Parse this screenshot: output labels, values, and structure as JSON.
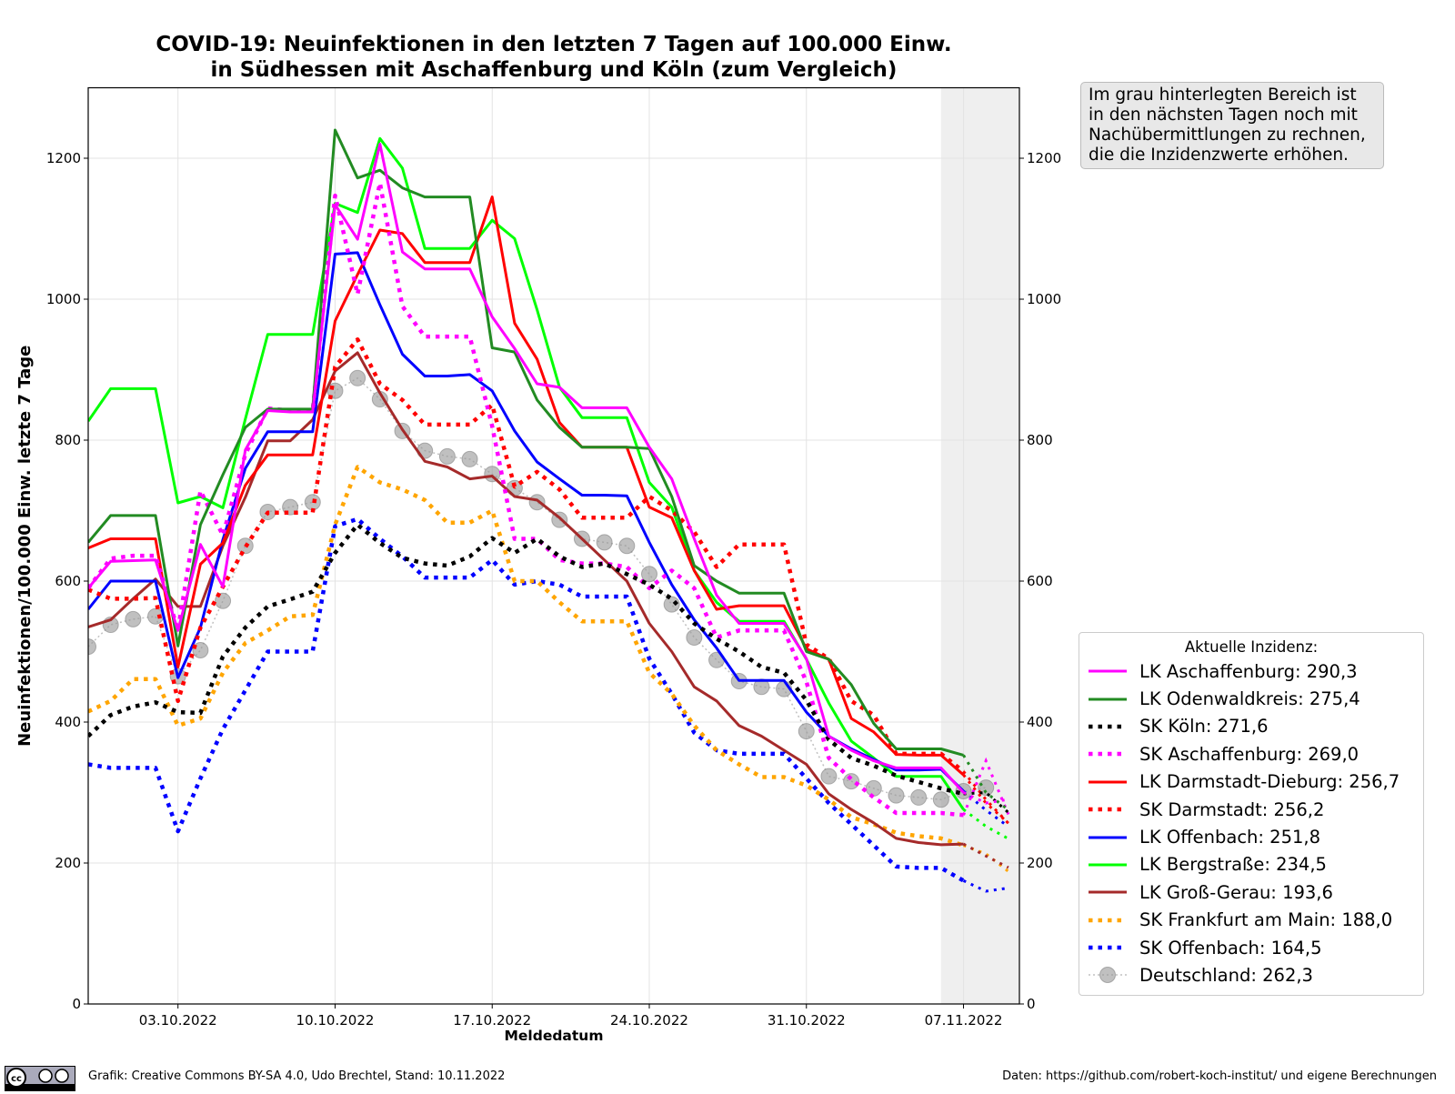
{
  "title_line1": "COVID-19: Neuinfektionen in den letzten 7 Tagen auf 100.000 Einw.",
  "title_line2": "in Südhessen mit Aschaffenburg und Köln (zum Vergleich)",
  "note": "Im grau hinterlegten Bereich ist in den nächsten Tagen noch mit Nachübermittlungen zu rechnen, die die Inzidenzwerte erhöhen.",
  "legend_title": "Aktuelle Inzidenz:",
  "footer_left": "Grafik: Creative Commons BY-SA 4.0, Udo Brechtel, Stand: 10.11.2022",
  "footer_right": "Daten: https://github.com/robert-koch-institut/ und eigene Berechnungen",
  "cc_badge": "BY SA",
  "chart_data": {
    "type": "line",
    "xlabel": "Meldedatum",
    "ylabel": "Neuinfektionen/100.000 Einw. letzte 7 Tage",
    "ylim": [
      0,
      1300
    ],
    "yticks": [
      0,
      200,
      400,
      600,
      800,
      1000,
      1200
    ],
    "x_start": "29.09.2022",
    "x_end": "09.11.2022",
    "xticks": [
      {
        "day": 4,
        "label": "03.10.2022"
      },
      {
        "day": 11,
        "label": "10.10.2022"
      },
      {
        "day": 18,
        "label": "17.10.2022"
      },
      {
        "day": 25,
        "label": "24.10.2022"
      },
      {
        "day": 32,
        "label": "31.10.2022"
      },
      {
        "day": 39,
        "label": "07.11.2022"
      }
    ],
    "shaded_from_day": 38,
    "provisional_from_day": 39,
    "grid": true,
    "legend_placement": "right",
    "series": [
      {
        "name": "LK Aschaffenburg: 290,3",
        "color": "#ff00ff",
        "style": "solid",
        "values": [
          590,
          628,
          629,
          630,
          530,
          652,
          592,
          786,
          842,
          840,
          840,
          1134,
          1085,
          1220,
          1067,
          1043,
          1043,
          1043,
          975,
          930,
          880,
          875,
          846,
          846,
          846,
          790,
          745,
          660,
          580,
          540,
          540,
          540,
          490,
          380,
          360,
          345,
          335,
          335,
          335,
          300,
          285,
          290.3
        ]
      },
      {
        "name": "LK Odenwaldkreis: 275,4",
        "color": "#228b22",
        "style": "solid",
        "values": [
          655,
          693,
          693,
          693,
          508,
          680,
          751,
          818,
          844,
          844,
          844,
          1240,
          1172,
          1183,
          1158,
          1145,
          1145,
          1145,
          931,
          925,
          857,
          818,
          790,
          790,
          790,
          788,
          720,
          622,
          600,
          583,
          583,
          583,
          500,
          489,
          453,
          398,
          362,
          362,
          362,
          353,
          300,
          275.4
        ]
      },
      {
        "name": "SK Köln: 271,6",
        "color": "#000000",
        "style": "dotted",
        "values": [
          380,
          410,
          422,
          428,
          414,
          413,
          493,
          534,
          564,
          574,
          585,
          640,
          680,
          654,
          633,
          625,
          622,
          635,
          661,
          640,
          660,
          635,
          620,
          625,
          610,
          595,
          575,
          540,
          518,
          500,
          478,
          470,
          431,
          375,
          349,
          338,
          324,
          315,
          306,
          298,
          300,
          271.6
        ]
      },
      {
        "name": "SK Aschaffenburg: 269,0",
        "color": "#ff00ff",
        "style": "dotted",
        "values": [
          590,
          632,
          636,
          636,
          530,
          728,
          665,
          780,
          845,
          842,
          842,
          1147,
          1007,
          1165,
          990,
          947,
          947,
          947,
          820,
          660,
          660,
          630,
          625,
          625,
          620,
          590,
          615,
          590,
          520,
          530,
          530,
          530,
          457,
          349,
          319,
          293,
          271,
          271,
          271,
          268,
          345,
          269.0
        ]
      },
      {
        "name": "LK Darmstadt-Dieburg: 256,7",
        "color": "#ff0000",
        "style": "solid",
        "values": [
          647,
          660,
          660,
          660,
          478,
          624,
          654,
          736,
          779,
          779,
          779,
          969,
          1035,
          1098,
          1093,
          1052,
          1052,
          1052,
          1145,
          966,
          915,
          825,
          790,
          790,
          790,
          705,
          690,
          615,
          560,
          565,
          565,
          565,
          504,
          489,
          405,
          386,
          354,
          353,
          353,
          325,
          285,
          256.7
        ]
      },
      {
        "name": "SK Darmstadt: 256,2",
        "color": "#ff0000",
        "style": "dotted",
        "values": [
          588,
          575,
          575,
          576,
          430,
          534,
          592,
          648,
          697,
          697,
          697,
          904,
          943,
          880,
          857,
          822,
          822,
          822,
          850,
          734,
          755,
          730,
          690,
          690,
          690,
          720,
          700,
          670,
          620,
          652,
          652,
          652,
          510,
          490,
          430,
          410,
          355,
          355,
          355,
          330,
          290,
          256.2
        ]
      },
      {
        "name": "LK Offenbach: 251,8",
        "color": "#0000ff",
        "style": "solid",
        "values": [
          560,
          600,
          600,
          600,
          463,
          534,
          659,
          760,
          812,
          812,
          812,
          1064,
          1066,
          992,
          922,
          891,
          891,
          893,
          870,
          813,
          769,
          745,
          722,
          722,
          721,
          655,
          595,
          545,
          505,
          459,
          459,
          459,
          414,
          380,
          362,
          347,
          332,
          332,
          333,
          302,
          275,
          251.8
        ]
      },
      {
        "name": "LK Bergstraße: 234,5",
        "color": "#00ff00",
        "style": "solid",
        "values": [
          827,
          873,
          873,
          873,
          711,
          720,
          704,
          830,
          950,
          950,
          950,
          1136,
          1123,
          1228,
          1186,
          1072,
          1072,
          1072,
          1112,
          1086,
          985,
          875,
          832,
          832,
          832,
          740,
          705,
          615,
          570,
          543,
          543,
          543,
          489,
          427,
          373,
          349,
          323,
          323,
          323,
          276,
          252,
          234.5
        ]
      },
      {
        "name": "LK Groß-Gerau: 193,6",
        "color": "#a52a2a",
        "style": "solid",
        "values": [
          535,
          545,
          575,
          603,
          564,
          564,
          650,
          719,
          799,
          799,
          829,
          898,
          924,
          867,
          815,
          770,
          762,
          745,
          749,
          720,
          715,
          690,
          660,
          630,
          600,
          540,
          500,
          450,
          430,
          395,
          380,
          360,
          340,
          298,
          276,
          257,
          235,
          229,
          226,
          227,
          210,
          193.6
        ]
      },
      {
        "name": "SK Frankfurt am Main: 188,0",
        "color": "#ffa500",
        "style": "dotted",
        "values": [
          415,
          430,
          461,
          461,
          395,
          405,
          470,
          512,
          530,
          550,
          552,
          680,
          762,
          740,
          730,
          715,
          683,
          683,
          700,
          600,
          600,
          570,
          543,
          543,
          543,
          470,
          440,
          395,
          360,
          340,
          322,
          322,
          310,
          290,
          265,
          255,
          243,
          238,
          235,
          225,
          213,
          188.0
        ]
      },
      {
        "name": "SK Offenbach: 164,5",
        "color": "#0000ff",
        "style": "dotted",
        "values": [
          340,
          335,
          335,
          335,
          245,
          320,
          390,
          445,
          500,
          500,
          500,
          678,
          688,
          660,
          635,
          605,
          605,
          605,
          630,
          595,
          600,
          595,
          578,
          578,
          578,
          490,
          440,
          385,
          360,
          355,
          355,
          355,
          320,
          285,
          255,
          225,
          195,
          193,
          193,
          175,
          160,
          164.5
        ]
      },
      {
        "name": "Deutschland: 262,3",
        "color": "#a0a0a0",
        "style": "markers",
        "values": [
          507,
          538,
          546,
          550,
          465,
          502,
          572,
          650,
          698,
          705,
          712,
          870,
          888,
          858,
          813,
          785,
          777,
          773,
          752,
          732,
          712,
          687,
          660,
          655,
          650,
          610,
          567,
          520,
          488,
          458,
          450,
          447,
          387,
          323,
          316,
          306,
          296,
          293,
          290,
          302,
          307,
          null
        ]
      }
    ]
  }
}
